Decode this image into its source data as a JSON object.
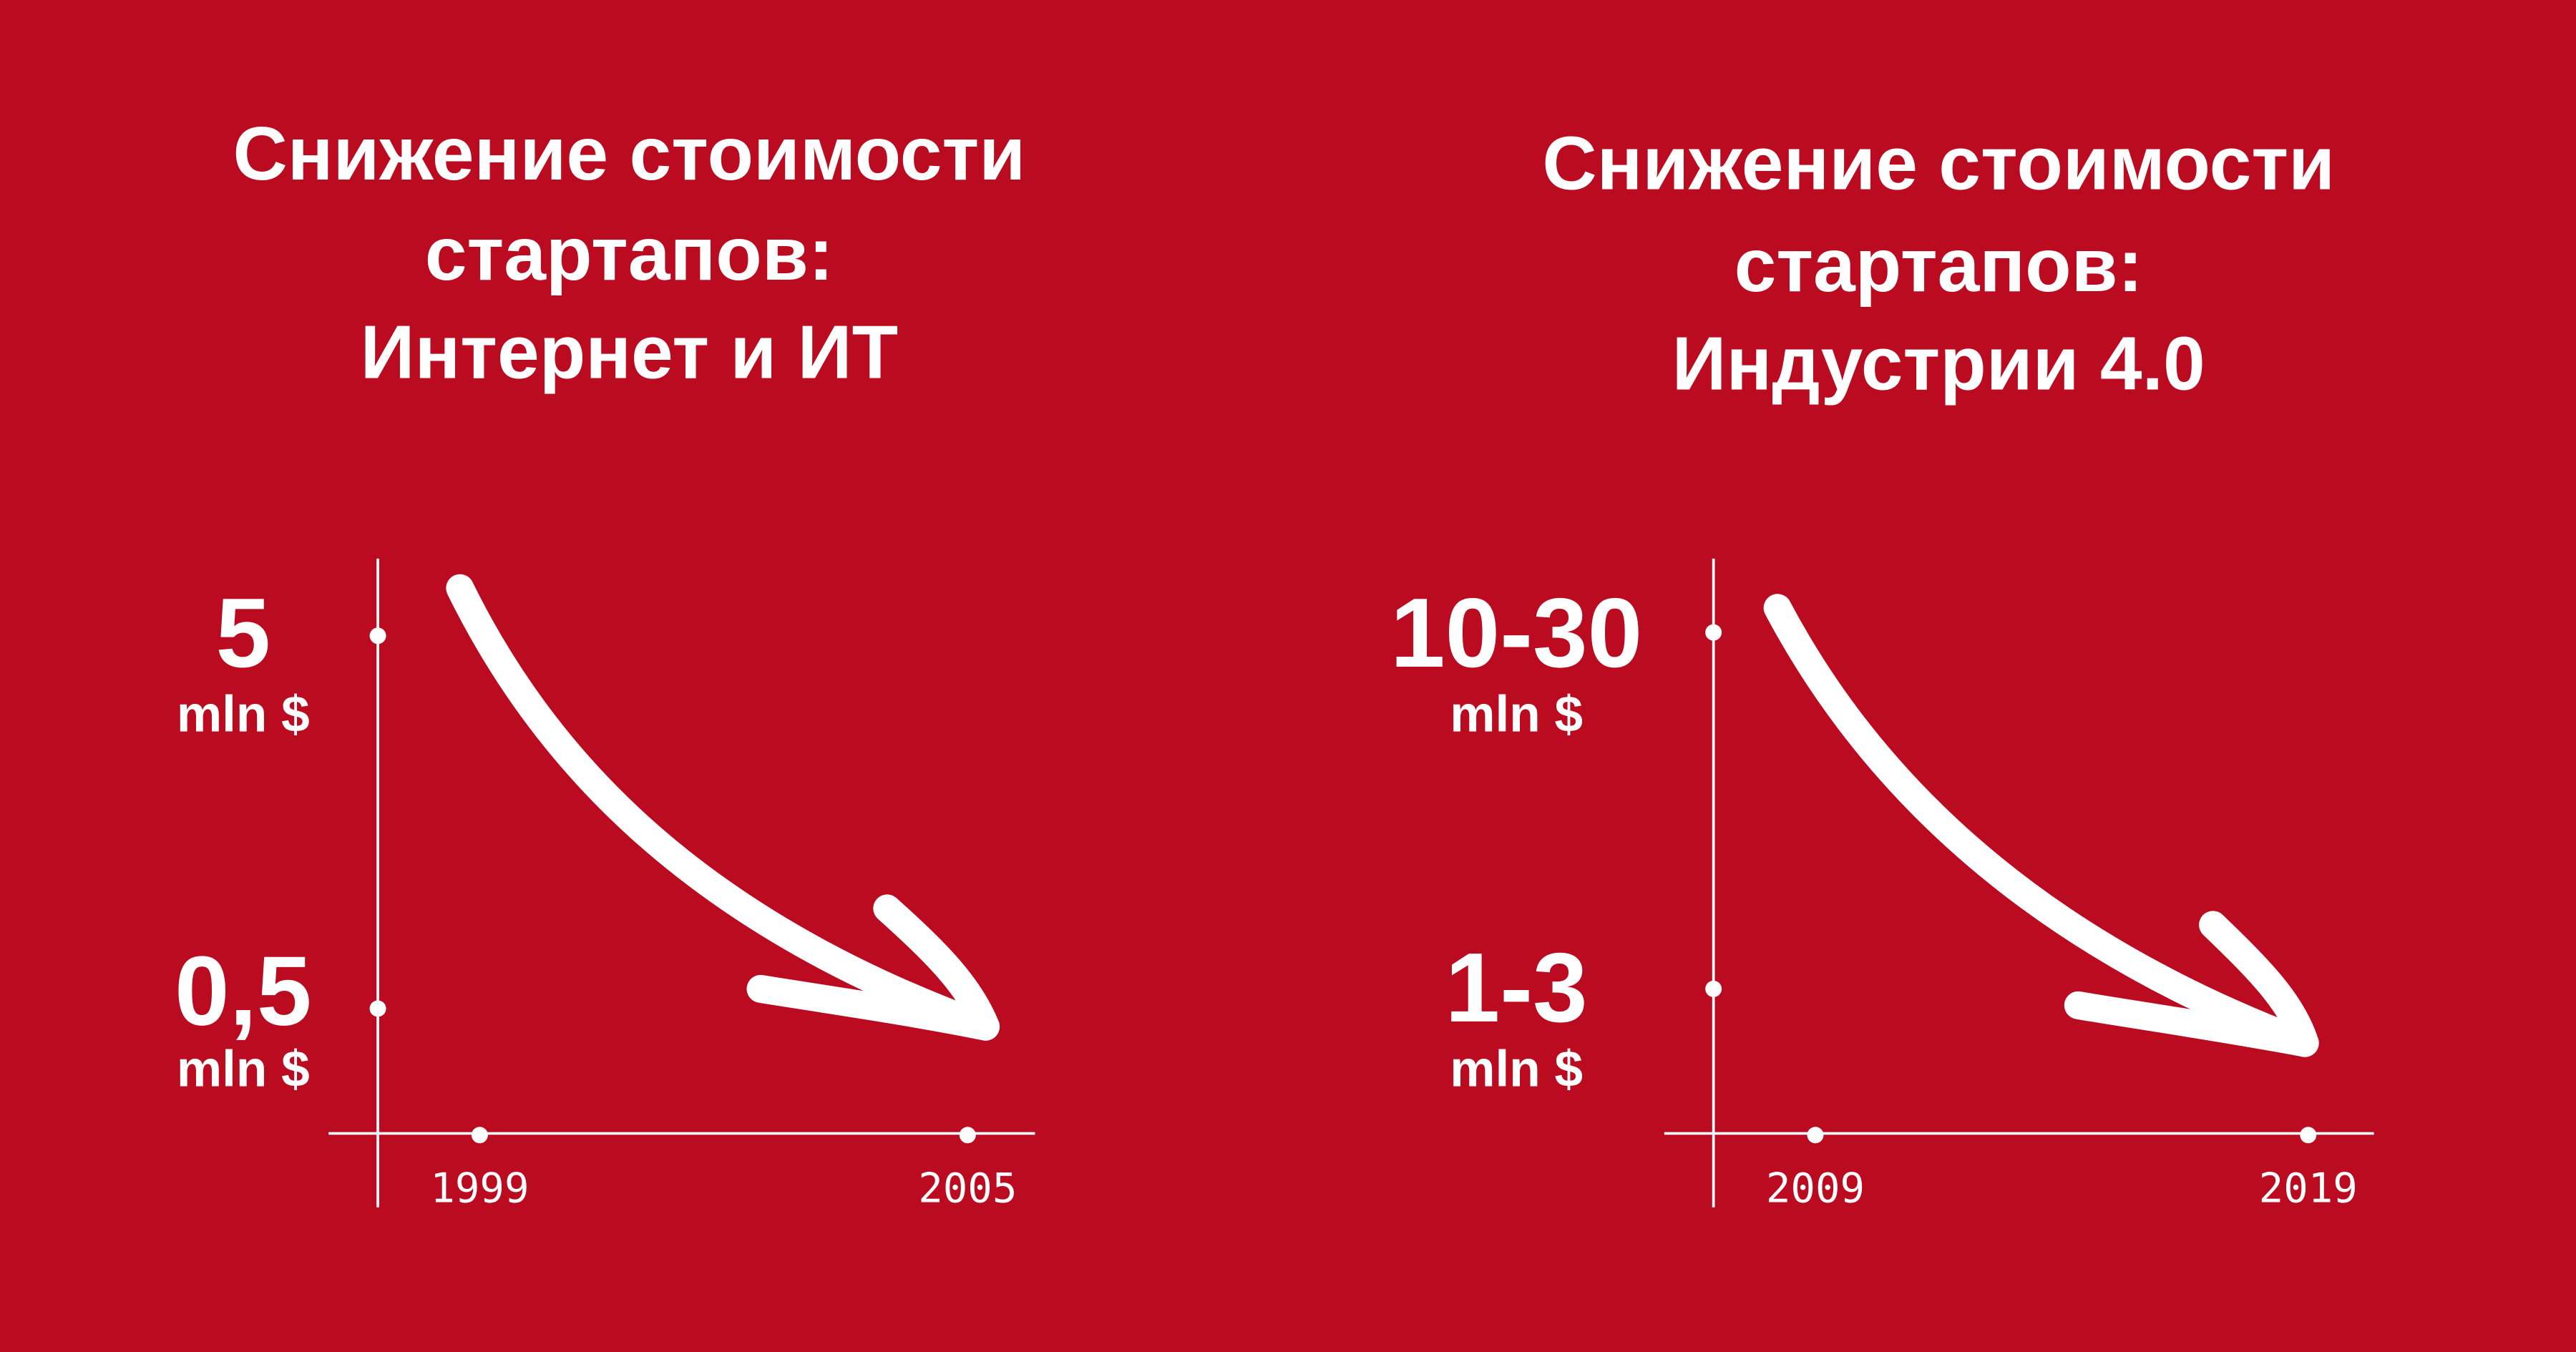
{
  "panels": [
    {
      "title": [
        "Снижение стоимости",
        "стартапов:",
        "Интернет и ИТ"
      ],
      "y_labels": [
        {
          "value": "5",
          "unit": "mln $"
        },
        {
          "value": "0,5",
          "unit": "mln $"
        }
      ],
      "x_labels": [
        "1999",
        "2005"
      ]
    },
    {
      "title": [
        "Снижение стоимости",
        "стартапов:",
        "Индустрии 4.0"
      ],
      "y_labels": [
        {
          "value": "10-30",
          "unit": "mln $"
        },
        {
          "value": "1-3",
          "unit": "mln $"
        }
      ],
      "x_labels": [
        "2009",
        "2019"
      ]
    }
  ]
}
